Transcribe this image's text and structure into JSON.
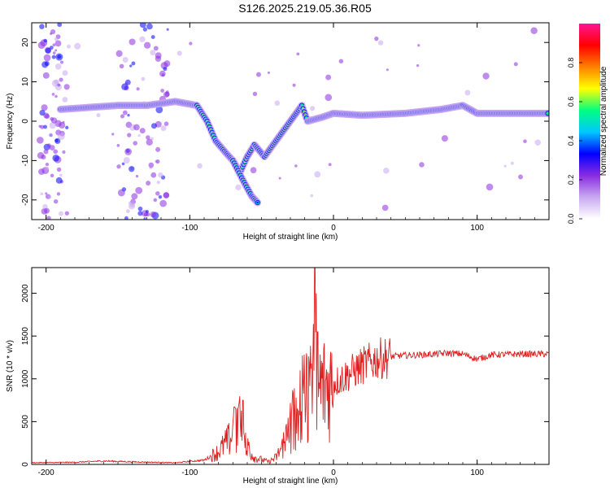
{
  "figure": {
    "title": "S126.2025.219.05.36.R05"
  },
  "chart_data": [
    {
      "type": "heatmap",
      "xlabel": "Height of straight line (km)",
      "ylabel": "Frequency (Hz)",
      "xlim": [
        -210,
        150
      ],
      "ylim": [
        -25,
        25
      ],
      "xticks": [
        -200,
        -100,
        0,
        100
      ],
      "yticks": [
        -20,
        -10,
        0,
        10,
        20
      ],
      "colorbar": {
        "label": "Normalized spectral amplitude",
        "range": [
          0,
          1
        ],
        "ticks": [
          0.0,
          0.2,
          0.4,
          0.6,
          0.8
        ],
        "colors": [
          "#ffffff",
          "#c8a8f0",
          "#8a2be2",
          "#0000ff",
          "#00c8ff",
          "#00ff80",
          "#ffff00",
          "#ff8000",
          "#ff0000",
          "#ff1493"
        ]
      },
      "ridge": {
        "description_points": [
          {
            "x": -190,
            "y": 3
          },
          {
            "x": -170,
            "y": 3.5
          },
          {
            "x": -150,
            "y": 4
          },
          {
            "x": -130,
            "y": 4
          },
          {
            "x": -110,
            "y": 5
          },
          {
            "x": -95,
            "y": 4
          },
          {
            "x": -88,
            "y": 0
          },
          {
            "x": -82,
            "y": -5
          },
          {
            "x": -75,
            "y": -8
          },
          {
            "x": -70,
            "y": -10
          },
          {
            "x": -65,
            "y": -13
          },
          {
            "x": -60,
            "y": -9
          },
          {
            "x": -55,
            "y": -6
          },
          {
            "x": -48,
            "y": -9
          },
          {
            "x": -40,
            "y": -5
          },
          {
            "x": -30,
            "y": 0
          },
          {
            "x": -22,
            "y": 4
          },
          {
            "x": -18,
            "y": 0
          },
          {
            "x": -8,
            "y": 1
          },
          {
            "x": 0,
            "y": 2
          },
          {
            "x": 20,
            "y": 1.5
          },
          {
            "x": 50,
            "y": 2
          },
          {
            "x": 75,
            "y": 3
          },
          {
            "x": 90,
            "y": 4
          },
          {
            "x": 100,
            "y": 2
          },
          {
            "x": 120,
            "y": 2
          },
          {
            "x": 150,
            "y": 2
          }
        ],
        "secondary_tail": [
          {
            "x": -70,
            "y": -10
          },
          {
            "x": -63,
            "y": -15
          },
          {
            "x": -57,
            "y": -19
          },
          {
            "x": -52,
            "y": -21
          }
        ]
      }
    },
    {
      "type": "line",
      "xlabel": "Height of straight line (km)",
      "ylabel": "SNR (10 * v/v)",
      "xlim": [
        -210,
        150
      ],
      "ylim": [
        0,
        2300
      ],
      "xticks": [
        -200,
        -100,
        0,
        100
      ],
      "yticks": [
        0,
        500,
        1000,
        1500,
        2000
      ],
      "series": [
        {
          "color": "#e02020",
          "envelope": [
            {
              "x": -210,
              "y": 20
            },
            {
              "x": -180,
              "y": 25
            },
            {
              "x": -160,
              "y": 40
            },
            {
              "x": -140,
              "y": 30
            },
            {
              "x": -110,
              "y": 20
            },
            {
              "x": -90,
              "y": 50
            },
            {
              "x": -80,
              "y": 150
            },
            {
              "x": -72,
              "y": 300
            },
            {
              "x": -66,
              "y": 500
            },
            {
              "x": -62,
              "y": 250
            },
            {
              "x": -55,
              "y": 80
            },
            {
              "x": -45,
              "y": 30
            },
            {
              "x": -40,
              "y": 80
            },
            {
              "x": -32,
              "y": 300
            },
            {
              "x": -28,
              "y": 550
            },
            {
              "x": -22,
              "y": 700
            },
            {
              "x": -18,
              "y": 800
            },
            {
              "x": -14,
              "y": 950
            },
            {
              "x": -12,
              "y": 900
            },
            {
              "x": -8,
              "y": 900
            },
            {
              "x": 0,
              "y": 950
            },
            {
              "x": 10,
              "y": 1050
            },
            {
              "x": 20,
              "y": 1150
            },
            {
              "x": 30,
              "y": 1230
            },
            {
              "x": 45,
              "y": 1270
            },
            {
              "x": 60,
              "y": 1280
            },
            {
              "x": 80,
              "y": 1300
            },
            {
              "x": 90,
              "y": 1290
            },
            {
              "x": 100,
              "y": 1230
            },
            {
              "x": 110,
              "y": 1280
            },
            {
              "x": 130,
              "y": 1290
            },
            {
              "x": 150,
              "y": 1290
            }
          ],
          "spikes": [
            {
              "x": -63,
              "y": 750
            },
            {
              "x": -26,
              "y": 780
            },
            {
              "x": -14,
              "y": 1640
            },
            {
              "x": -13,
              "y": 2300
            },
            {
              "x": -12,
              "y": 2000
            },
            {
              "x": -11,
              "y": 1550
            }
          ]
        }
      ]
    }
  ]
}
